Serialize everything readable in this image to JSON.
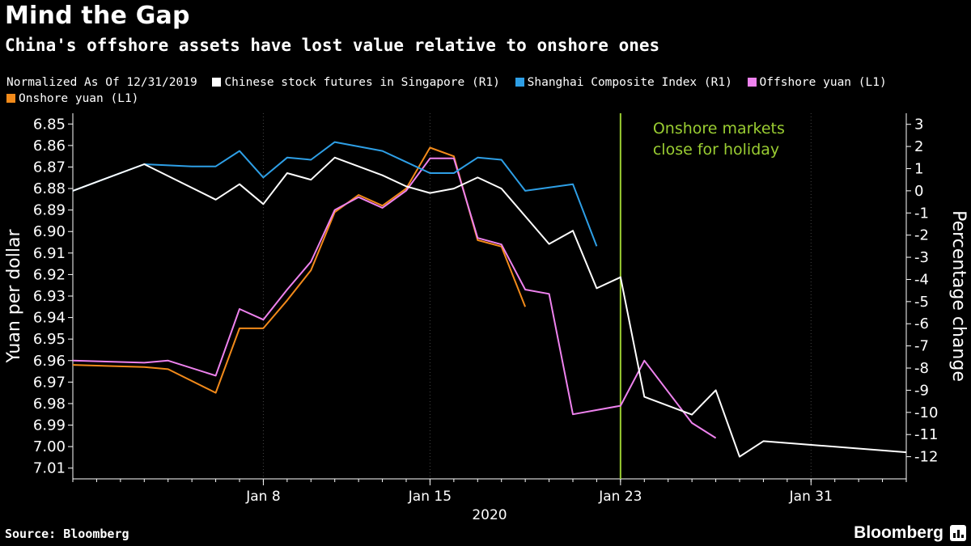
{
  "header": {
    "title": "Mind the Gap",
    "subtitle": "China's offshore assets have lost value relative to onshore ones"
  },
  "legend": {
    "prefix": "Normalized As Of 12/31/2019"
  },
  "footer": {
    "source": "Source: Bloomberg",
    "brand": "Bloomberg"
  },
  "chart_data": {
    "type": "line",
    "title": "Mind the Gap",
    "xlabel": "2020",
    "ylabel_left": "Yuan per dollar",
    "ylabel_right": "Percentage change",
    "left_axis": {
      "min": 6.845,
      "max": 7.015,
      "inverted": true,
      "ticks": [
        "6.85",
        "6.86",
        "6.87",
        "6.88",
        "6.89",
        "6.90",
        "6.91",
        "6.92",
        "6.93",
        "6.94",
        "6.95",
        "6.96",
        "6.97",
        "6.98",
        "6.99",
        "7.00",
        "7.01"
      ]
    },
    "right_axis": {
      "min": -13,
      "max": 3.5,
      "ticks": [
        "3",
        "2",
        "1",
        "0",
        "-1",
        "-2",
        "-3",
        "-4",
        "-5",
        "-6",
        "-7",
        "-8",
        "-9",
        "-10",
        "-11",
        "-12"
      ]
    },
    "x_range": [
      0,
      35
    ],
    "x_ticks": [
      {
        "x": 8,
        "label": "Jan 8"
      },
      {
        "x": 15,
        "label": "Jan 15"
      },
      {
        "x": 23,
        "label": "Jan 23"
      },
      {
        "x": 31,
        "label": "Jan 31"
      }
    ],
    "annotation": {
      "x": 23,
      "lines": [
        "Onshore markets",
        "close for holiday"
      ],
      "color": "#9acd32"
    },
    "series": [
      {
        "name": "Chinese stock futures in Singapore (R1)",
        "axis": "right",
        "color": "#ffffff",
        "points": [
          [
            0,
            0
          ],
          [
            3,
            1.2
          ],
          [
            6,
            -0.4
          ],
          [
            7,
            0.3
          ],
          [
            8,
            -0.6
          ],
          [
            9,
            0.8
          ],
          [
            10,
            0.5
          ],
          [
            11,
            1.5
          ],
          [
            13,
            0.7
          ],
          [
            14,
            0.2
          ],
          [
            15,
            -0.1
          ],
          [
            16,
            0.1
          ],
          [
            17,
            0.6
          ],
          [
            18,
            0.1
          ],
          [
            20,
            -2.4
          ],
          [
            21,
            -1.8
          ],
          [
            22,
            -4.4
          ],
          [
            23,
            -3.9
          ],
          [
            24,
            -9.3
          ],
          [
            26,
            -10.1
          ],
          [
            27,
            -9.0
          ],
          [
            28,
            -12.0
          ],
          [
            29,
            -11.3
          ],
          [
            35,
            -11.8
          ]
        ]
      },
      {
        "name": "Shanghai Composite Index (R1)",
        "axis": "right",
        "color": "#2e9fe6",
        "points": [
          [
            0,
            0
          ],
          [
            3,
            1.2
          ],
          [
            5,
            1.1
          ],
          [
            6,
            1.1
          ],
          [
            7,
            1.8
          ],
          [
            8,
            0.6
          ],
          [
            9,
            1.5
          ],
          [
            10,
            1.4
          ],
          [
            11,
            2.2
          ],
          [
            13,
            1.8
          ],
          [
            14,
            1.3
          ],
          [
            15,
            0.8
          ],
          [
            16,
            0.8
          ],
          [
            17,
            1.5
          ],
          [
            18,
            1.4
          ],
          [
            19,
            0
          ],
          [
            21,
            0.3
          ],
          [
            22,
            -2.5
          ]
        ]
      },
      {
        "name": "Offshore yuan (L1)",
        "axis": "left",
        "color": "#ee82ee",
        "points": [
          [
            0,
            6.96
          ],
          [
            3,
            6.961
          ],
          [
            4,
            6.96
          ],
          [
            6,
            6.967
          ],
          [
            7,
            6.936
          ],
          [
            8,
            6.941
          ],
          [
            9,
            6.927
          ],
          [
            10,
            6.914
          ],
          [
            11,
            6.89
          ],
          [
            12,
            6.884
          ],
          [
            13,
            6.889
          ],
          [
            14,
            6.881
          ],
          [
            15,
            6.866
          ],
          [
            16,
            6.866
          ],
          [
            17,
            6.903
          ],
          [
            18,
            6.906
          ],
          [
            19,
            6.927
          ],
          [
            20,
            6.929
          ],
          [
            21,
            6.985
          ],
          [
            23,
            6.981
          ],
          [
            24,
            6.96
          ],
          [
            26,
            6.989
          ],
          [
            27,
            6.996
          ]
        ]
      },
      {
        "name": "Onshore yuan (L1)",
        "axis": "left",
        "color": "#f28a1a",
        "points": [
          [
            0,
            6.962
          ],
          [
            3,
            6.963
          ],
          [
            4,
            6.964
          ],
          [
            6,
            6.975
          ],
          [
            7,
            6.945
          ],
          [
            8,
            6.945
          ],
          [
            9,
            6.932
          ],
          [
            10,
            6.918
          ],
          [
            11,
            6.891
          ],
          [
            12,
            6.883
          ],
          [
            13,
            6.888
          ],
          [
            14,
            6.88
          ],
          [
            15,
            6.861
          ],
          [
            16,
            6.865
          ],
          [
            17,
            6.904
          ],
          [
            18,
            6.907
          ],
          [
            19,
            6.935
          ]
        ]
      }
    ]
  }
}
